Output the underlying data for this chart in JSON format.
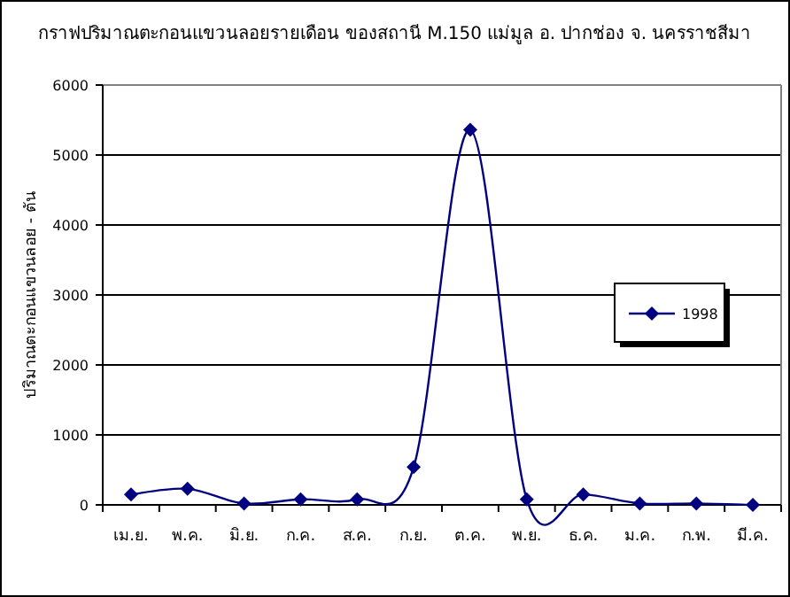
{
  "chart_data": {
    "type": "line",
    "title": "กราฟปริมาณตะกอนแขวนลอยรายเดือน ของสถานี M.150 แม่มูล อ. ปากช่อง จ. นครราชสีมา",
    "ylabel": "ปริมาณตะกอนแขวนลอย - ตัน",
    "categories": [
      "เม.ย.",
      "พ.ค.",
      "มิ.ย.",
      "ก.ค.",
      "ส.ค.",
      "ก.ย.",
      "ต.ค.",
      "พ.ย.",
      "ธ.ค.",
      "ม.ค.",
      "ก.พ.",
      "มี.ค."
    ],
    "series": [
      {
        "name": "1998",
        "color": "#000080",
        "values": [
          150,
          230,
          20,
          80,
          80,
          540,
          5360,
          80,
          150,
          20,
          20,
          0
        ]
      }
    ],
    "ylim": [
      0,
      6000
    ],
    "yticks": [
      0,
      1000,
      2000,
      3000,
      4000,
      5000,
      6000
    ],
    "grid": "y",
    "legend": "right",
    "marker": "diamond",
    "line_style": "solid"
  }
}
